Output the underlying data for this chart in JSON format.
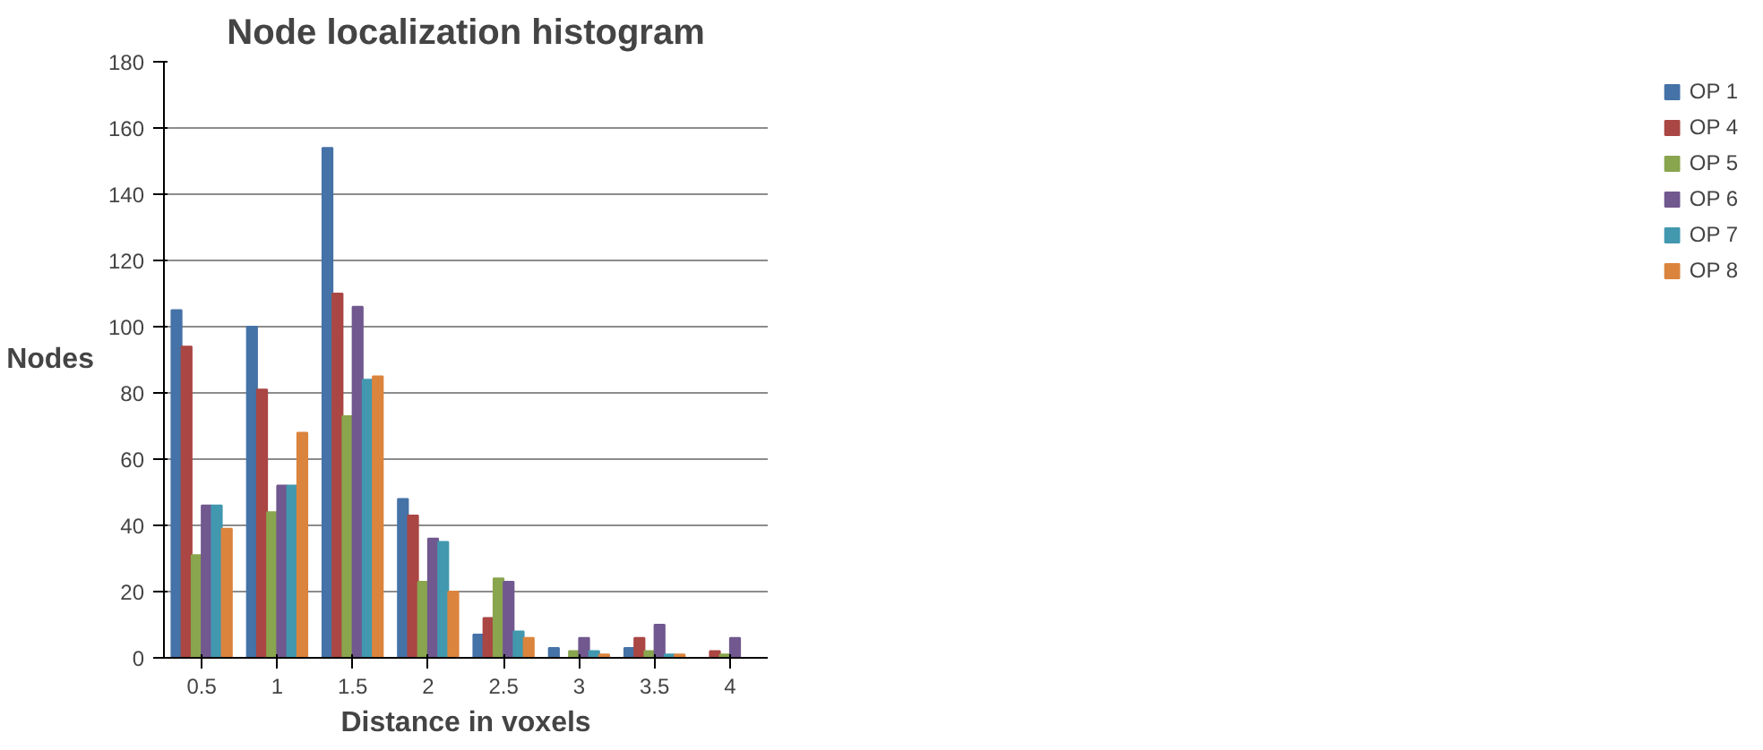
{
  "chart_data": {
    "type": "bar",
    "title": "Node localization histogram",
    "xlabel": "Distance in voxels",
    "ylabel": "Nodes",
    "categories": [
      "0.5",
      "1",
      "1.5",
      "2",
      "2.5",
      "3",
      "3.5",
      "4"
    ],
    "series": [
      {
        "name": "OP 1",
        "color": "#4572a7",
        "values": [
          105,
          100,
          154,
          48,
          7,
          3,
          3,
          0
        ]
      },
      {
        "name": "OP 4",
        "color": "#aa4643",
        "values": [
          94,
          81,
          110,
          43,
          12,
          0,
          6,
          2
        ]
      },
      {
        "name": "OP 5",
        "color": "#89a54e",
        "values": [
          31,
          44,
          73,
          23,
          24,
          2,
          2,
          1
        ]
      },
      {
        "name": "OP 6",
        "color": "#71588f",
        "values": [
          46,
          52,
          106,
          36,
          23,
          6,
          10,
          6
        ]
      },
      {
        "name": "OP 7",
        "color": "#4198af",
        "values": [
          46,
          52,
          84,
          35,
          8,
          2,
          1,
          0
        ]
      },
      {
        "name": "OP 8",
        "color": "#db843d",
        "values": [
          39,
          68,
          85,
          20,
          6,
          1,
          1,
          0
        ]
      }
    ],
    "ylim": [
      0,
      180
    ],
    "yticks": [
      0,
      20,
      40,
      60,
      80,
      100,
      120,
      140,
      160,
      180
    ],
    "grid": "y",
    "legend": "right"
  }
}
